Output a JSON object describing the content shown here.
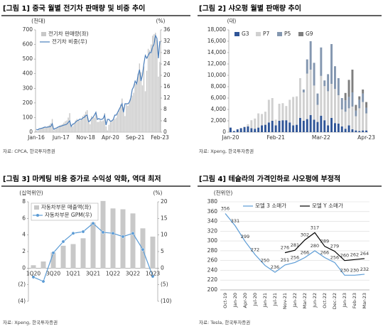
{
  "chart_data": [
    {
      "type": "bar",
      "title": "[그림 1] 중국 월별 전기차 판매량 및 비중 추이",
      "source": "자료: CPCA, 한국투자증권",
      "y_unit": "(천대)",
      "y2_unit": "(%)",
      "legend_position": "top-left",
      "grid": false,
      "categories": [
        "Jan-16",
        null,
        null,
        null,
        null,
        null,
        null,
        null,
        null,
        null,
        null,
        null,
        null,
        null,
        null,
        null,
        null,
        "Jun-17",
        null,
        null,
        null,
        null,
        null,
        null,
        null,
        null,
        null,
        null,
        null,
        null,
        null,
        null,
        null,
        null,
        "Nov-18",
        null,
        null,
        null,
        null,
        null,
        null,
        null,
        null,
        null,
        null,
        null,
        null,
        null,
        null,
        null,
        null,
        "Apr-20",
        null,
        null,
        null,
        null,
        null,
        null,
        null,
        null,
        null,
        null,
        null,
        null,
        null,
        null,
        null,
        null,
        "Sep-21",
        null,
        null,
        null,
        null,
        null,
        null,
        null,
        null,
        null,
        null,
        null,
        null,
        null,
        null,
        null,
        null,
        "Feb-23"
      ],
      "series": [
        {
          "name": "전기차 판매량(좌)",
          "type": "bar",
          "color": "#c8c8c8",
          "values": [
            10,
            8,
            20,
            25,
            30,
            35,
            33,
            36,
            42,
            50,
            60,
            90,
            12,
            20,
            30,
            35,
            45,
            50,
            55,
            65,
            75,
            80,
            100,
            130,
            40,
            40,
            60,
            80,
            90,
            85,
            80,
            90,
            110,
            120,
            140,
            150,
            80,
            55,
            110,
            100,
            100,
            130,
            70,
            70,
            80,
            75,
            80,
            130,
            40,
            12,
            50,
            70,
            80,
            90,
            90,
            100,
            130,
            160,
            190,
            230,
            170,
            110,
            190,
            180,
            200,
            230,
            250,
            270,
            330,
            330,
            400,
            470,
            410,
            320,
            450,
            280,
            420,
            570,
            560,
            600,
            660,
            670,
            680,
            630,
            380,
            480
          ]
        },
        {
          "name": "전기차 비중(우)",
          "type": "line",
          "axis": "y2",
          "color": "#4a7ebb",
          "values": [
            1.0,
            0.8,
            1.2,
            1.3,
            1.4,
            1.6,
            1.8,
            1.7,
            1.8,
            1.9,
            2.0,
            3.0,
            1.0,
            1.3,
            1.5,
            1.8,
            2.0,
            2.1,
            2.3,
            2.5,
            2.6,
            2.8,
            3.4,
            4.0,
            2.0,
            2.8,
            3.0,
            3.5,
            4.0,
            4.2,
            4.6,
            4.5,
            5.0,
            5.2,
            5.8,
            6.0,
            3.7,
            4.0,
            4.8,
            5.2,
            6.0,
            7.0,
            4.5,
            4.8,
            4.5,
            4.5,
            4.8,
            6.0,
            2.5,
            4.5,
            4.5,
            3.8,
            4.0,
            4.5,
            6.0,
            6.0,
            7.0,
            8.0,
            9.0,
            10.0,
            7.0,
            10.0,
            10.0,
            10.0,
            10.5,
            12.0,
            15.0,
            16.0,
            18.0,
            17.0,
            20.0,
            22.0,
            18.0,
            20.0,
            24.0,
            27.0,
            26.0,
            27.0,
            28.0,
            28.0,
            30.0,
            31.0,
            34.0,
            33.0,
            26.0,
            32.0
          ]
        }
      ],
      "ylim": [
        0,
        700
      ],
      "yticks": [
        0,
        100,
        200,
        300,
        400,
        500,
        600,
        700
      ],
      "y2lim": [
        0,
        36
      ],
      "y2ticks": [
        0,
        4,
        8,
        12,
        16,
        20,
        24,
        28,
        32,
        36
      ]
    },
    {
      "type": "bar",
      "title": "[그림 2] 샤오펑 월별 판매량 추이",
      "source": "자료: Xpeng, 한국투자증권",
      "y_unit": "(대)",
      "legend_position": "top-left",
      "grid": false,
      "stacked": true,
      "categories": [
        "Jan-20",
        null,
        null,
        null,
        null,
        null,
        null,
        null,
        null,
        null,
        null,
        null,
        null,
        "Feb-21",
        null,
        null,
        null,
        null,
        null,
        null,
        null,
        null,
        null,
        null,
        null,
        null,
        "Mar-22",
        null,
        null,
        null,
        null,
        null,
        null,
        null,
        null,
        null,
        null,
        null,
        null,
        "Apr-23"
      ],
      "series": [
        {
          "name": "G3",
          "type": "bar",
          "color": "#2f5597",
          "values": [
            800,
            200,
            500,
            700,
            900,
            1000,
            700,
            600,
            800,
            1200,
            1300,
            1700,
            2000,
            1200,
            2000,
            2100,
            2100,
            1700,
            1200,
            1300,
            2500,
            2000,
            2300,
            3000,
            2200,
            1800,
            2900,
            2100,
            1200,
            2500,
            1600,
            1500,
            1000,
            600,
            1200,
            500,
            300,
            200,
            300,
            300
          ]
        },
        {
          "name": "P7",
          "type": "bar",
          "color": "#d0d0d0",
          "values": [
            null,
            null,
            null,
            null,
            100,
            400,
            1400,
            1800,
            2500,
            2000,
            2300,
            4000,
            4000,
            1000,
            3000,
            3000,
            2500,
            4000,
            5000,
            5000,
            7000,
            5000,
            8000,
            8000,
            6000,
            3000,
            7000,
            6000,
            6000,
            6000,
            6000,
            5000,
            3000,
            3000,
            3000,
            4000,
            2500,
            4000,
            5000,
            3000
          ]
        },
        {
          "name": "P5",
          "type": "bar",
          "color": "#8497b0",
          "values": [
            null,
            null,
            null,
            null,
            null,
            null,
            null,
            null,
            null,
            null,
            null,
            null,
            null,
            null,
            null,
            null,
            null,
            null,
            null,
            null,
            null,
            500,
            2500,
            5000,
            4000,
            2000,
            5000,
            1000,
            3000,
            7000,
            4000,
            3000,
            2000,
            2000,
            2000,
            2500,
            1000,
            1500,
            1500,
            1000
          ]
        },
        {
          "name": "G9",
          "type": "bar",
          "color": "#7f7f7f",
          "values": [
            null,
            null,
            null,
            null,
            null,
            null,
            null,
            null,
            null,
            null,
            null,
            null,
            null,
            null,
            null,
            null,
            null,
            null,
            null,
            null,
            null,
            null,
            null,
            null,
            null,
            null,
            null,
            null,
            null,
            null,
            null,
            null,
            null,
            1300,
            3000,
            4000,
            1000,
            600,
            700,
            1000
          ]
        }
      ],
      "ylim": [
        0,
        18000
      ],
      "yticks": [
        0,
        {
          "value": 2000,
          "label": "2,000"
        },
        {
          "value": 4000,
          "label": "4,000"
        },
        {
          "value": 6000,
          "label": "6,000"
        },
        {
          "value": 8000,
          "label": "8,000"
        },
        {
          "value": 10000,
          "label": "10,000"
        },
        {
          "value": 12000,
          "label": "12,000"
        },
        {
          "value": 14000,
          "label": "14,000"
        },
        {
          "value": 16000,
          "label": "16,000"
        },
        {
          "value": 18000,
          "label": "18,000"
        }
      ]
    },
    {
      "type": "bar",
      "title": "[그림 3] 마케팅 비용 증가로 수익성 악화, 역대 최저",
      "source": "자료: Xpeng, 한국투자증권",
      "y_unit": "(십억위안)",
      "y2_unit": "(%)",
      "legend_position": "top-left",
      "grid": false,
      "categories": [
        "1Q20",
        null,
        "3Q20",
        null,
        "1Q21",
        null,
        "3Q21",
        null,
        "1Q22",
        null,
        "3Q22",
        null,
        "1Q23"
      ],
      "series": [
        {
          "name": "자동차부문 매출액(좌)",
          "type": "bar",
          "color": "#c8c8c8",
          "values": [
            0.35,
            0.8,
            1.9,
            2.7,
            2.9,
            3.6,
            5.5,
            8.1,
            7.2,
            7.1,
            6.6,
            4.8,
            3.8
          ]
        },
        {
          "name": "자동차부문 GPM(우)",
          "type": "line",
          "axis": "y2",
          "color": "#5b9bd5",
          "markers": true,
          "values": [
            -2.7,
            -4.0,
            4.6,
            8.0,
            10.5,
            11.0,
            13.5,
            10.8,
            10.5,
            9.5,
            10.5,
            5.6,
            -2.5
          ]
        }
      ],
      "ylim": [
        -4,
        8
      ],
      "yticks": [
        {
          "value": -4,
          "label": "(4)"
        },
        {
          "value": -2,
          "label": "(2)"
        },
        0,
        2,
        4,
        6,
        8
      ],
      "y2lim": [
        -10,
        20
      ],
      "y2ticks": [
        {
          "value": -10,
          "label": "(10)"
        },
        {
          "value": -5,
          "label": "(5)"
        },
        0,
        5,
        10,
        15,
        20
      ]
    },
    {
      "type": "line",
      "title": "[그림 4] 테슬라의 가격인하로 샤오펑에 부정적",
      "source": "자료: Tesla, 한국투자증권",
      "y_unit": "(천위안)",
      "legend_position": "top",
      "grid": true,
      "show_values": true,
      "categories": [
        "Oct-19",
        "Jan-20",
        "Apr-20",
        "Jul-20",
        "Jan-21",
        "Jul-21",
        "Nov-21",
        "Jan-22",
        "Mar-22",
        "Jun-22",
        "Oct-22",
        "Dec-22",
        "Jan-23",
        "Feb-23",
        "Mar-23"
      ],
      "series": [
        {
          "name": "모델 3 소매가",
          "type": "line",
          "color": "#5b9bd5",
          "values": [
            356,
            331,
            299,
            272,
            250,
            236,
            251,
            256,
            266,
            280,
            266,
            256,
            230,
            230,
            232
          ]
        },
        {
          "name": "모델 Y 소매가",
          "type": "line",
          "color": "#000000",
          "values": [
            null,
            null,
            null,
            null,
            null,
            null,
            276,
            281,
            302,
            317,
            289,
            279,
            260,
            262,
            264
          ]
        }
      ],
      "ylim": [
        200,
        380
      ],
      "yticks": [
        200,
        220,
        240,
        260,
        280,
        300,
        320,
        340,
        360,
        380
      ]
    }
  ]
}
